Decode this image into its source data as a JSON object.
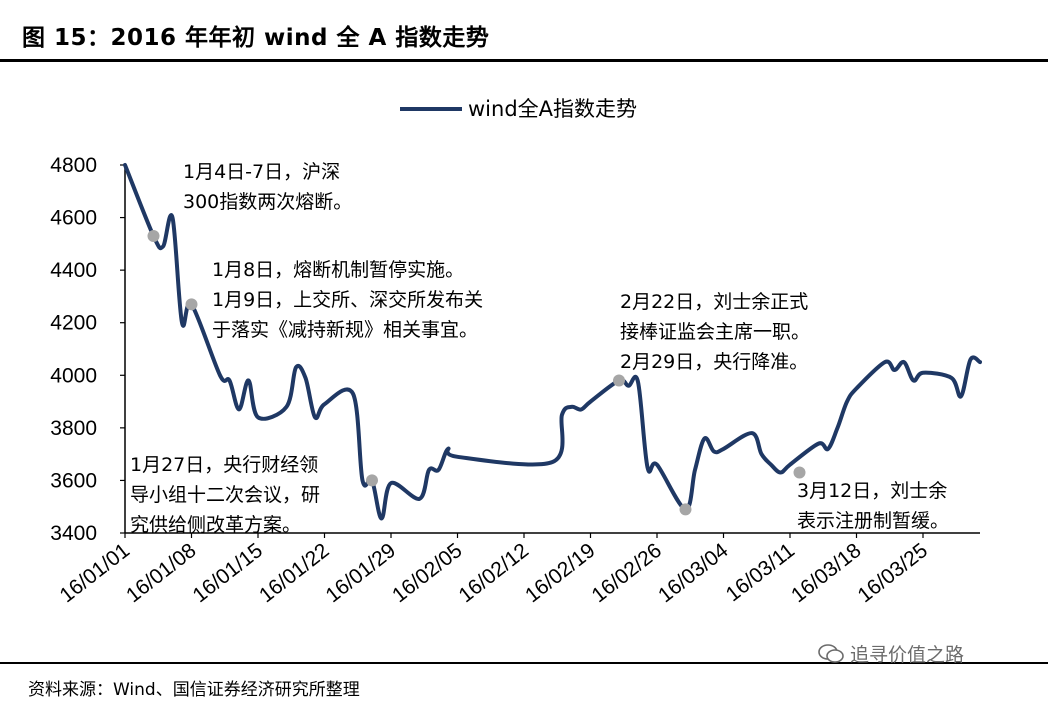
{
  "figure": {
    "title": "图 15：2016 年年初 wind 全 A 指数走势",
    "source": "资料来源：Wind、国信证券经济研究所整理",
    "watermark": "追寻价值之路",
    "watermark_icon": "wechat-icon"
  },
  "chart_data": {
    "type": "line",
    "title": "",
    "xlabel": "",
    "ylabel": "",
    "ylim": [
      3400,
      4800
    ],
    "yticks": [
      "3400",
      "3600",
      "3800",
      "4000",
      "4200",
      "4400",
      "4600",
      "4800"
    ],
    "xticks": [
      "16/01/01",
      "16/01/08",
      "16/01/15",
      "16/01/22",
      "16/01/29",
      "16/02/05",
      "16/02/12",
      "16/02/19",
      "16/02/26",
      "16/03/04",
      "16/03/11",
      "16/03/18",
      "16/03/25"
    ],
    "grid": false,
    "legend": "top-center",
    "line_color": "#1f3864",
    "marker_color": "#a6a6a6",
    "series": [
      {
        "name": "wind全A指数走势",
        "points": [
          [
            "2016-01-01",
            4800
          ],
          [
            "2016-01-04",
            4530
          ],
          [
            "2016-01-05",
            4490
          ],
          [
            "2016-01-06",
            4600
          ],
          [
            "2016-01-07",
            4200
          ],
          [
            "2016-01-08",
            4270
          ],
          [
            "2016-01-11",
            4000
          ],
          [
            "2016-01-12",
            3980
          ],
          [
            "2016-01-13",
            3870
          ],
          [
            "2016-01-14",
            3980
          ],
          [
            "2016-01-15",
            3840
          ],
          [
            "2016-01-18",
            3880
          ],
          [
            "2016-01-19",
            4030
          ],
          [
            "2016-01-20",
            3990
          ],
          [
            "2016-01-21",
            3840
          ],
          [
            "2016-01-22",
            3890
          ],
          [
            "2016-01-25",
            3930
          ],
          [
            "2016-01-26",
            3600
          ],
          [
            "2016-01-27",
            3600
          ],
          [
            "2016-01-28",
            3455
          ],
          [
            "2016-01-29",
            3590
          ],
          [
            "2016-02-01",
            3530
          ],
          [
            "2016-02-02",
            3640
          ],
          [
            "2016-02-03",
            3640
          ],
          [
            "2016-02-04",
            3720
          ],
          [
            "2016-02-05",
            3690
          ],
          [
            "2016-02-15",
            3670
          ],
          [
            "2016-02-16",
            3850
          ],
          [
            "2016-02-17",
            3880
          ],
          [
            "2016-02-18",
            3870
          ],
          [
            "2016-02-19",
            3900
          ],
          [
            "2016-02-22",
            3980
          ],
          [
            "2016-02-23",
            3960
          ],
          [
            "2016-02-24",
            3975
          ],
          [
            "2016-02-25",
            3650
          ],
          [
            "2016-02-26",
            3660
          ],
          [
            "2016-02-29",
            3490
          ],
          [
            "2016-03-01",
            3640
          ],
          [
            "2016-03-02",
            3760
          ],
          [
            "2016-03-03",
            3710
          ],
          [
            "2016-03-04",
            3720
          ],
          [
            "2016-03-07",
            3780
          ],
          [
            "2016-03-08",
            3700
          ],
          [
            "2016-03-09",
            3660
          ],
          [
            "2016-03-10",
            3630
          ],
          [
            "2016-03-11",
            3660
          ],
          [
            "2016-03-14",
            3740
          ],
          [
            "2016-03-15",
            3720
          ],
          [
            "2016-03-16",
            3800
          ],
          [
            "2016-03-17",
            3900
          ],
          [
            "2016-03-18",
            3950
          ],
          [
            "2016-03-21",
            4050
          ],
          [
            "2016-03-22",
            4020
          ],
          [
            "2016-03-23",
            4050
          ],
          [
            "2016-03-24",
            3980
          ],
          [
            "2016-03-25",
            4010
          ],
          [
            "2016-03-28",
            3990
          ],
          [
            "2016-03-29",
            3920
          ],
          [
            "2016-03-30",
            4060
          ],
          [
            "2016-03-31",
            4050
          ]
        ]
      }
    ],
    "highlight_points": [
      [
        "2016-01-04",
        4530
      ],
      [
        "2016-01-08",
        4270
      ],
      [
        "2016-01-27",
        3600
      ],
      [
        "2016-02-22",
        3980
      ],
      [
        "2016-02-29",
        3490
      ],
      [
        "2016-03-12",
        3630
      ]
    ],
    "annotations": [
      {
        "lines": [
          "1月4日-7日，沪深",
          "300指数两次熔断。"
        ]
      },
      {
        "lines": [
          "1月8日，熔断机制暂停实施。",
          "1月9日，上交所、深交所发布关",
          "于落实《减持新规》相关事宜。"
        ]
      },
      {
        "lines": [
          "2月22日，刘士余正式",
          "接棒证监会主席一职。",
          "2月29日，央行降准。"
        ]
      },
      {
        "lines": [
          "1月27日，央行财经领",
          "导小组十二次会议，研",
          "究供给侧改革方案。"
        ]
      },
      {
        "lines": [
          "3月12日，刘士余",
          "表示注册制暂缓。"
        ]
      }
    ]
  }
}
